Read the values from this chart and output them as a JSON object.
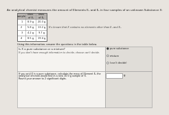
{
  "title": "An analytical chemist measures the amount of Elements E₁ and E₂ in four samples of an unknown Substance X:",
  "table_headers": [
    "sample",
    "mass\nof E₁",
    "mass\nof E₂"
  ],
  "table_data": [
    [
      "1",
      "8.9 g",
      "20.3 g"
    ],
    [
      "2",
      "5.8 g",
      "13.2 g"
    ],
    [
      "3",
      "4.2 g",
      "9.7 g"
    ],
    [
      "4",
      "8.5 g",
      "19.4 g"
    ]
  ],
  "side_text": "It's known that X contains no elements other than E₁ and E₂.",
  "bottom_label": "Using this information, answer the questions in the table below.",
  "q1_text": "Is X a pure substance or a mixture?",
  "q1_note": "If you don't have enough information to decide, choose can't decide.",
  "q2_text_1": "If you said X is a pure substance, calculate the mass of Element E₂ the",
  "q2_text_2": "analytical chemist would find in a new 10.0 g sample of X.",
  "q2_text_3": "Round your answer to 2 significant digits.",
  "options": [
    "pure substance",
    "mixture",
    "(can't decide)"
  ],
  "bg_color": "#e8e4df",
  "table_bg": "#ffffff",
  "header_bg": "#b8b4b0",
  "border_color": "#999999",
  "q_box_bg": "#f5f3f0",
  "opt_box_bg": "#e0ddd8",
  "answer_box_bg": "#ffffff",
  "text_color": "#1a1a1a",
  "subtle_color": "#444444"
}
